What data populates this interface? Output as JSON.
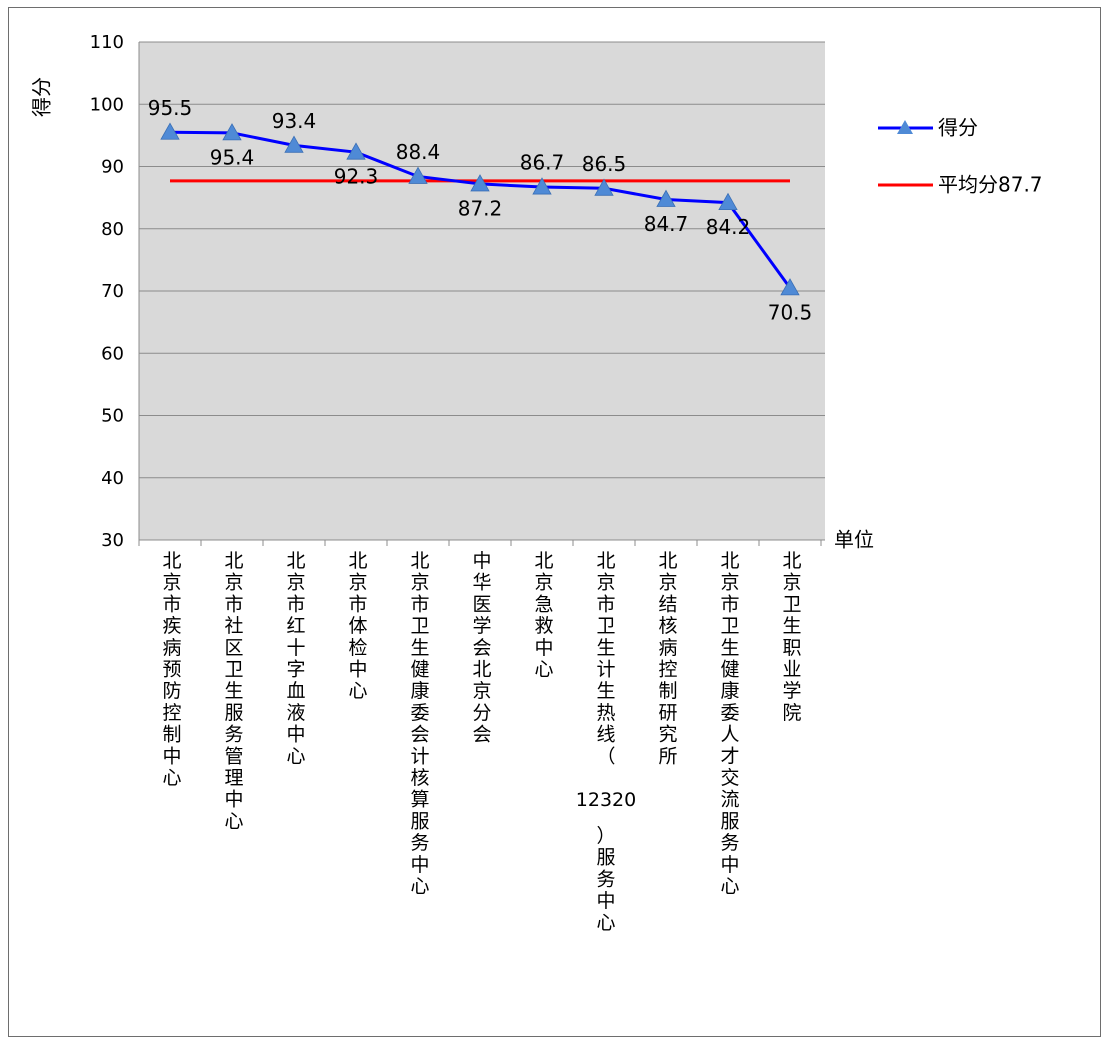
{
  "chart_data": {
    "type": "line",
    "ylabel": "得分",
    "xlabel": "单位",
    "ylim": [
      30,
      110
    ],
    "y_ticks": [
      30,
      40,
      50,
      60,
      70,
      80,
      90,
      100,
      110
    ],
    "grid": true,
    "legend_position": "right",
    "categories": [
      "北京市疾病预防控制中心",
      "北京市社区卫生服务管理中心",
      "北京市红十字血液中心",
      "北京市体检中心",
      "北京市卫生健康委会计核算服务中心",
      "中华医学会北京分会",
      "北京急救中心",
      "北京市卫生计生热线（12320）服务中心",
      "北京结核病控制研究所",
      "北京市卫生健康委人才交流服务中心",
      "北京卫生职业学院"
    ],
    "series": [
      {
        "name": "得分",
        "color": "#0000ff",
        "marker": "triangle",
        "marker_color": "#4f8ad6",
        "values": [
          95.5,
          95.4,
          93.4,
          92.3,
          88.4,
          87.2,
          86.7,
          86.5,
          84.7,
          84.2,
          70.5
        ],
        "labels": [
          "95.5",
          "95.4",
          "93.4",
          "92.3",
          "88.4",
          "87.2",
          "86.7",
          "86.5",
          "84.7",
          "84.2",
          "70.5"
        ]
      },
      {
        "name": "平均分87.7",
        "color": "#ff0000",
        "values": [
          87.7,
          87.7,
          87.7,
          87.7,
          87.7,
          87.7,
          87.7,
          87.7,
          87.7,
          87.7,
          87.7
        ]
      }
    ]
  }
}
